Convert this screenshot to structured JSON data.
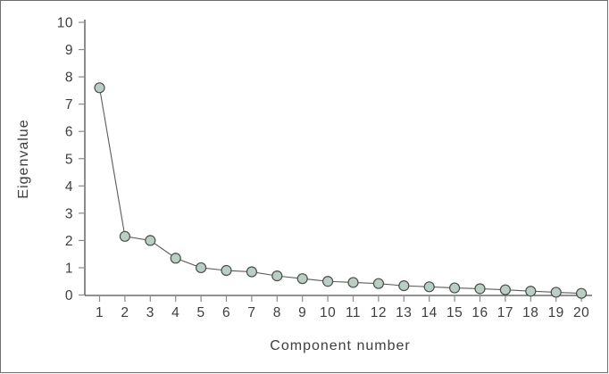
{
  "figure": {
    "background": "#ffffff",
    "border_color": "#6f6f6f"
  },
  "chart_data": {
    "type": "line",
    "title": "",
    "xlabel": "Component number",
    "ylabel": "Eigenvalue",
    "x": [
      1,
      2,
      3,
      4,
      5,
      6,
      7,
      8,
      9,
      10,
      11,
      12,
      13,
      14,
      15,
      16,
      17,
      18,
      19,
      20
    ],
    "values": [
      7.6,
      2.15,
      2.0,
      1.35,
      1.0,
      0.9,
      0.85,
      0.7,
      0.6,
      0.5,
      0.46,
      0.42,
      0.34,
      0.3,
      0.26,
      0.23,
      0.19,
      0.14,
      0.1,
      0.06
    ],
    "x_tick_labels": [
      "1",
      "2",
      "3",
      "4",
      "5",
      "6",
      "7",
      "8",
      "9",
      "10",
      "11",
      "12",
      "13",
      "14",
      "15",
      "16",
      "17",
      "18",
      "19",
      "20"
    ],
    "y_tick_labels": [
      "0",
      "1",
      "2",
      "3",
      "4",
      "5",
      "6",
      "7",
      "8",
      "9",
      "10"
    ],
    "y_ticks": [
      0,
      1,
      2,
      3,
      4,
      5,
      6,
      7,
      8,
      9,
      10
    ],
    "xlim": [
      1,
      20
    ],
    "ylim": [
      0,
      10
    ],
    "grid": false,
    "legend": null,
    "marker": "circle",
    "colors": {
      "marker_fill": "#b9cfc4",
      "marker_stroke": "#4c4c4c",
      "line": "#5c5c5c",
      "axis": "#4f4f4f",
      "tick": "#8a8a8a",
      "text": "#3e3e3e"
    }
  }
}
